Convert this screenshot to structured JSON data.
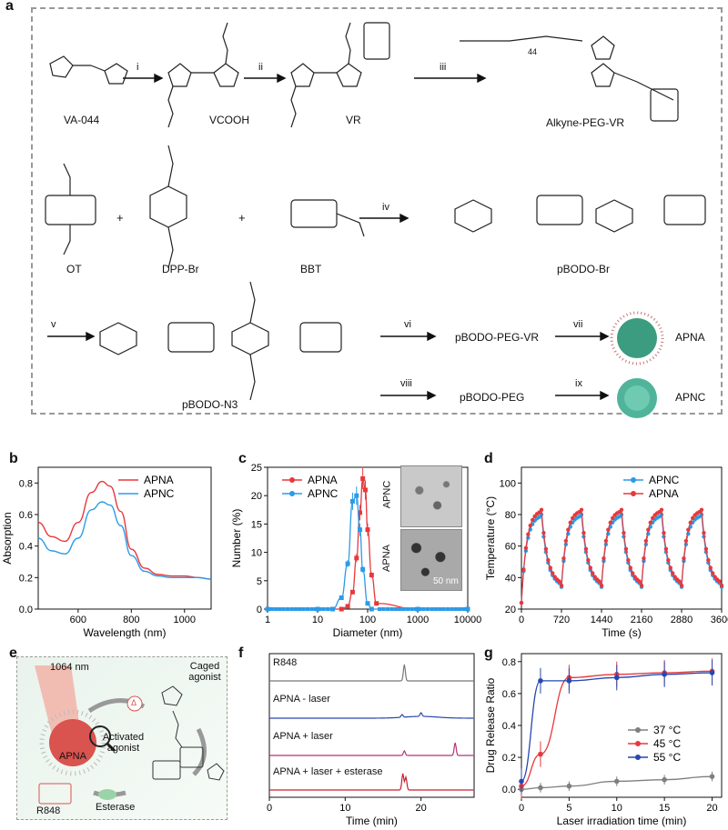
{
  "panels": {
    "a": "a",
    "b": "b",
    "c": "c",
    "d": "d",
    "e": "e",
    "f": "f",
    "g": "g"
  },
  "scheme": {
    "row1": {
      "compounds": [
        "VA-044",
        "VCOOH",
        "VR",
        "Alkyne-PEG-VR"
      ],
      "steps": [
        "i",
        "ii",
        "iii"
      ],
      "peg_n": "44"
    },
    "row2": {
      "compounds": [
        "OT",
        "DPP-Br",
        "BBT",
        "pBODO-Br"
      ],
      "step": "iv",
      "plus": "+"
    },
    "row3": {
      "compounds": [
        "pBODO-N3",
        "pBODO-PEG-VR",
        "APNA",
        "pBODO-PEG",
        "APNC"
      ],
      "steps": [
        "v",
        "vi",
        "vii",
        "viii",
        "ix"
      ]
    }
  },
  "panel_e": {
    "laser": "1064 nm",
    "caged": "Caged agonist",
    "activated": "Activated agonist",
    "apna": "APNA",
    "r848": "R848",
    "esterase": "Esterase",
    "heat": "Δ"
  },
  "panel_f": {
    "traces": [
      "R848",
      "APNA - laser",
      "APNA + laser",
      "APNA + laser + esterase"
    ],
    "xlabel": "Time (min)",
    "xticks": [
      "0",
      "10",
      "20"
    ]
  },
  "chart_data": [
    {
      "type": "line",
      "panel": "b",
      "xlabel": "Wavelength (nm)",
      "ylabel": "Absorption",
      "xlim": [
        450,
        1100
      ],
      "ylim": [
        0,
        0.9
      ],
      "xticks": [
        "600",
        "800",
        "1000"
      ],
      "yticks": [
        "0.0",
        "0.2",
        "0.4",
        "0.6",
        "0.8"
      ],
      "legend": "top-right",
      "series": [
        {
          "name": "APNA",
          "color": "#e8383b",
          "x": [
            450,
            500,
            550,
            600,
            650,
            690,
            720,
            760,
            800,
            850,
            900,
            950,
            1000,
            1050,
            1100
          ],
          "values": [
            0.55,
            0.46,
            0.43,
            0.55,
            0.74,
            0.81,
            0.78,
            0.62,
            0.38,
            0.26,
            0.22,
            0.21,
            0.21,
            0.2,
            0.19
          ]
        },
        {
          "name": "APNC",
          "color": "#2a9be8",
          "x": [
            450,
            500,
            550,
            600,
            650,
            690,
            720,
            760,
            800,
            850,
            900,
            950,
            1000,
            1050,
            1100
          ],
          "values": [
            0.45,
            0.37,
            0.35,
            0.45,
            0.63,
            0.68,
            0.66,
            0.53,
            0.34,
            0.24,
            0.21,
            0.2,
            0.2,
            0.2,
            0.19
          ]
        }
      ]
    },
    {
      "type": "line",
      "panel": "c",
      "xlabel": "Diameter (nm)",
      "ylabel": "Number (%)",
      "xscale": "log",
      "xlim": [
        1,
        10000
      ],
      "ylim": [
        0,
        25
      ],
      "xticks": [
        "1",
        "10",
        "100",
        "1000",
        "10000"
      ],
      "yticks": [
        "0",
        "5",
        "10",
        "15",
        "20",
        "25"
      ],
      "legend": "top-left",
      "series": [
        {
          "name": "APNA",
          "color": "#e8383b",
          "x": [
            1,
            10,
            30,
            40,
            50,
            60,
            70,
            80,
            90,
            100,
            120,
            150,
            1000,
            10000
          ],
          "values": [
            0,
            0,
            0,
            0.5,
            3,
            9,
            17,
            23,
            21,
            14,
            6,
            1,
            0,
            0
          ]
        },
        {
          "name": "APNC",
          "color": "#2a9be8",
          "x": [
            1,
            10,
            20,
            30,
            40,
            50,
            60,
            70,
            80,
            100,
            120,
            1000,
            10000
          ],
          "values": [
            0,
            0,
            0,
            2,
            8,
            19,
            20,
            14,
            7,
            1,
            0,
            0,
            0
          ]
        }
      ],
      "inset": {
        "labels": [
          "APNC",
          "APNA"
        ],
        "scale": "50 nm"
      }
    },
    {
      "type": "line",
      "panel": "d",
      "xlabel": "Time (s)",
      "ylabel": "Temperature (°C)",
      "xlim": [
        0,
        3600
      ],
      "ylim": [
        20,
        110
      ],
      "xticks": [
        "0",
        "720",
        "1440",
        "2160",
        "2880",
        "3600"
      ],
      "yticks": [
        "20",
        "40",
        "60",
        "80",
        "100"
      ],
      "legend": "top-right",
      "cycles": 5,
      "period": 720,
      "series": [
        {
          "name": "APNC",
          "color": "#2a9be8",
          "peak": 80,
          "base": 34
        },
        {
          "name": "APNA",
          "color": "#e8383b",
          "peak": 83,
          "base": 35
        }
      ]
    },
    {
      "type": "line",
      "panel": "g",
      "xlabel": "Laser irradiation time (min)",
      "ylabel": "Drug Release Ratio",
      "xlim": [
        0,
        21
      ],
      "ylim": [
        -0.05,
        0.85
      ],
      "xticks": [
        "0",
        "5",
        "10",
        "15",
        "20"
      ],
      "yticks": [
        "0.0",
        "0.2",
        "0.4",
        "0.6",
        "0.8"
      ],
      "legend": "center-right",
      "series": [
        {
          "name": "37 °C",
          "color": "#7f7f7f",
          "x": [
            0,
            2,
            5,
            10,
            15,
            20
          ],
          "values": [
            0.0,
            0.01,
            0.02,
            0.05,
            0.06,
            0.08
          ]
        },
        {
          "name": "45 °C",
          "color": "#e8383b",
          "x": [
            0,
            2,
            5,
            10,
            15,
            20
          ],
          "values": [
            0.02,
            0.22,
            0.7,
            0.72,
            0.73,
            0.74
          ]
        },
        {
          "name": "55 °C",
          "color": "#2747b0",
          "x": [
            0,
            2,
            5,
            10,
            15,
            20
          ],
          "values": [
            0.05,
            0.68,
            0.68,
            0.7,
            0.72,
            0.73
          ]
        }
      ]
    }
  ]
}
